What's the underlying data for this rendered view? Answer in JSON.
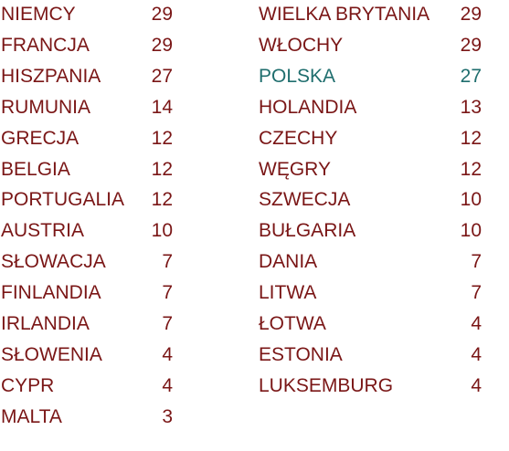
{
  "columns": [
    {
      "rows": [
        {
          "name": "NIEMCY",
          "value": 29
        },
        {
          "name": "FRANCJA",
          "value": 29
        },
        {
          "name": "HISZPANIA",
          "value": 27
        },
        {
          "name": "RUMUNIA",
          "value": 14
        },
        {
          "name": "GRECJA",
          "value": 12
        },
        {
          "name": "BELGIA",
          "value": 12
        },
        {
          "name": "PORTUGALIA",
          "value": 12
        },
        {
          "name": "AUSTRIA",
          "value": 10
        },
        {
          "name": "SŁOWACJA",
          "value": 7
        },
        {
          "name": "FINLANDIA",
          "value": 7
        },
        {
          "name": "IRLANDIA",
          "value": 7
        },
        {
          "name": "SŁOWENIA",
          "value": 4
        },
        {
          "name": "CYPR",
          "value": 4
        },
        {
          "name": "MALTA",
          "value": 3
        }
      ]
    },
    {
      "rows": [
        {
          "name": "WIELKA BRYTANIA",
          "value": 29
        },
        {
          "name": "WŁOCHY",
          "value": 29
        },
        {
          "name": "POLSKA",
          "value": 27,
          "color": "#1f6e6e"
        },
        {
          "name": "HOLANDIA",
          "value": 13
        },
        {
          "name": "CZECHY",
          "value": 12
        },
        {
          "name": "WĘGRY",
          "value": 12
        },
        {
          "name": "SZWECJA",
          "value": 10
        },
        {
          "name": "BUŁGARIA",
          "value": 10
        },
        {
          "name": "DANIA",
          "value": 7
        },
        {
          "name": "LITWA",
          "value": 7
        },
        {
          "name": "ŁOTWA",
          "value": 4
        },
        {
          "name": "ESTONIA",
          "value": 4
        },
        {
          "name": "LUKSEMBURG",
          "value": 4
        }
      ]
    }
  ]
}
